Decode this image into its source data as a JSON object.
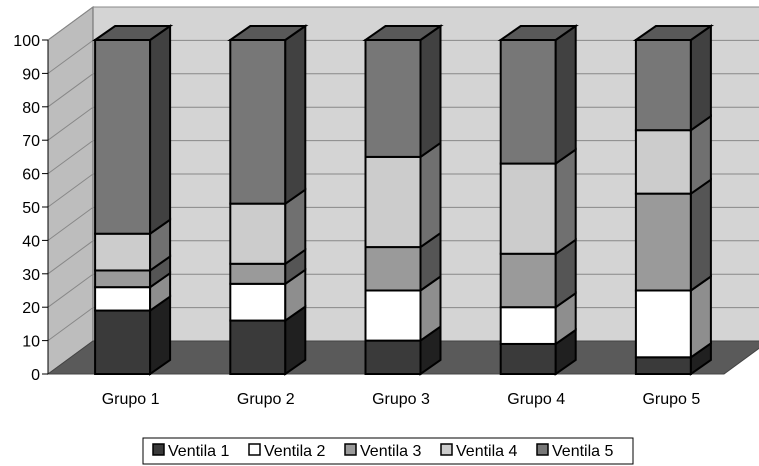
{
  "chart_data": {
    "type": "bar",
    "stacked": true,
    "three_d": true,
    "categories": [
      "Grupo 1",
      "Grupo 2",
      "Grupo 3",
      "Grupo 4",
      "Grupo 5"
    ],
    "series": [
      {
        "name": "Ventila 1",
        "color": "#3a3a3a",
        "values": [
          19,
          16,
          10,
          9,
          5
        ]
      },
      {
        "name": "Ventila 2",
        "color": "#ffffff",
        "values": [
          7,
          11,
          15,
          11,
          20
        ]
      },
      {
        "name": "Ventila 3",
        "color": "#9a9a9a",
        "values": [
          5,
          6,
          13,
          16,
          29
        ]
      },
      {
        "name": "Ventila 4",
        "color": "#cccccc",
        "values": [
          11,
          18,
          27,
          27,
          19
        ]
      },
      {
        "name": "Ventila 5",
        "color": "#777777",
        "values": [
          58,
          49,
          35,
          37,
          27
        ]
      }
    ],
    "yticks": [
      "0",
      "10",
      "20",
      "30",
      "40",
      "50",
      "60",
      "70",
      "80",
      "90",
      "100"
    ],
    "ylim": [
      0,
      100
    ],
    "grid": true,
    "legend_position": "bottom",
    "title": "",
    "xlabel": "",
    "ylabel": ""
  }
}
